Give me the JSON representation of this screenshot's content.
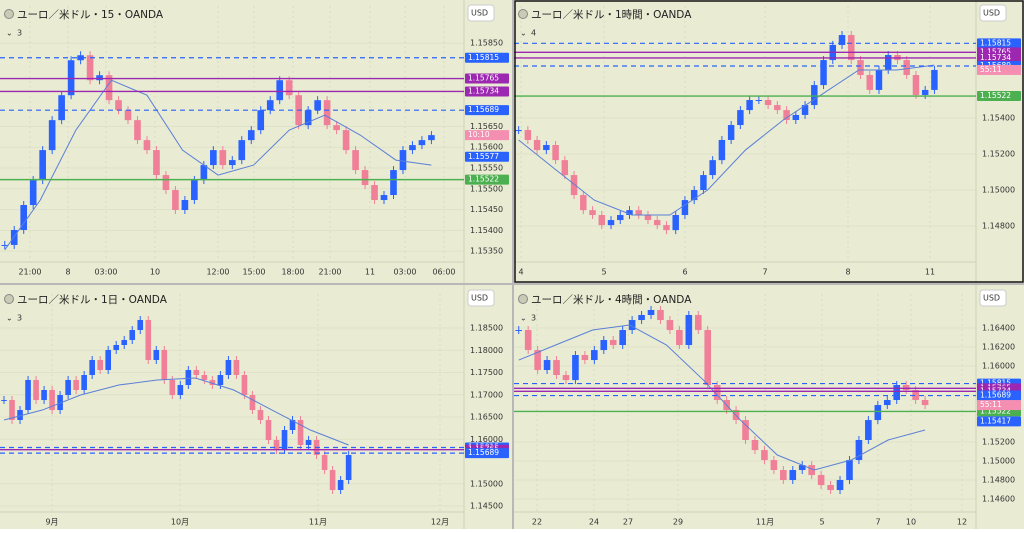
{
  "chart_data": [
    {
      "type": "candlestick",
      "title": "ユーロ／米ドル・15・OANDA",
      "indicator": "3",
      "currency": "USD",
      "ylim": [
        1.15324,
        1.15925
      ],
      "yticks": [
        {
          "value": 1.1535,
          "label": "1.15350"
        },
        {
          "value": 1.154,
          "label": "1.15400"
        },
        {
          "value": 1.1545,
          "label": "1.15450"
        },
        {
          "value": 1.155,
          "label": "1.15500"
        },
        {
          "value": 1.1555,
          "label": "1.15550"
        },
        {
          "value": 1.156,
          "label": "1.15600"
        },
        {
          "value": 1.1565,
          "label": "1.15650"
        },
        {
          "value": 1.1585,
          "label": "1.15850"
        }
      ],
      "xticks": [
        "21:00",
        "8",
        "03:00",
        "10",
        "12:00",
        "15:00",
        "18:00",
        "21:00",
        "11",
        "03:00",
        "06:00"
      ],
      "levels": [
        {
          "value": 1.15815,
          "color": "#2962ff",
          "style": "dashed"
        },
        {
          "value": 1.15765,
          "color": "#9c27b0",
          "style": "solid"
        },
        {
          "value": 1.15734,
          "color": "#9c27b0",
          "style": "solid"
        },
        {
          "value": 1.15689,
          "color": "#2962ff",
          "style": "dashed"
        },
        {
          "value": 1.15577,
          "color": "#2962ff",
          "style": "tag"
        },
        {
          "value": 1.15522,
          "color": "#4caf50",
          "style": "solid"
        }
      ],
      "countdown": "10:10",
      "closes": [
        1.15365,
        1.15401,
        1.15461,
        1.15521,
        1.15593,
        1.15665,
        1.15725,
        1.15809,
        1.15821,
        1.15761,
        1.15773,
        1.15713,
        1.15689,
        1.15665,
        1.15617,
        1.15593,
        1.15533,
        1.15497,
        1.15449,
        1.15473,
        1.15521,
        1.15557,
        1.15593,
        1.15557,
        1.15569,
        1.15617,
        1.15641,
        1.15689,
        1.15713,
        1.15761,
        1.15725,
        1.15653,
        1.15689,
        1.15713,
        1.15653,
        1.15641,
        1.15593,
        1.15545,
        1.15509,
        1.15473,
        1.15485,
        1.15545,
        1.15593,
        1.15605,
        1.15617,
        1.15629
      ],
      "ma": [
        1.15353,
        1.15473,
        1.15641,
        1.15761,
        1.15725,
        1.15593,
        1.15533,
        1.15557,
        1.15641,
        1.15677,
        1.15629,
        1.15569,
        1.15557
      ]
    },
    {
      "type": "candlestick",
      "title": "ユーロ／米ドル・1時間・OANDA",
      "indicator": "4",
      "currency": "USD",
      "ylim": [
        1.146,
        1.15989
      ],
      "yticks": [
        {
          "value": 1.148,
          "label": "1.14800"
        },
        {
          "value": 1.15,
          "label": "1.15000"
        },
        {
          "value": 1.152,
          "label": "1.15200"
        },
        {
          "value": 1.154,
          "label": "1.15400"
        }
      ],
      "xticks": [
        "4",
        "5",
        "6",
        "7",
        "8",
        "11"
      ],
      "levels": [
        {
          "value": 1.15815,
          "color": "#2962ff",
          "style": "dashed"
        },
        {
          "value": 1.15765,
          "color": "#9c27b0",
          "style": "solid"
        },
        {
          "value": 1.15734,
          "color": "#9c27b0",
          "style": "solid"
        },
        {
          "value": 1.15689,
          "color": "#2962ff",
          "style": "dashed"
        },
        {
          "value": 1.15522,
          "color": "#4caf50",
          "style": "solid"
        }
      ],
      "countdown": "55:11",
      "closes": [
        1.15333,
        1.15278,
        1.15222,
        1.1525,
        1.15166,
        1.15083,
        1.14972,
        1.14888,
        1.14861,
        1.14805,
        1.14833,
        1.14861,
        1.14888,
        1.14861,
        1.14833,
        1.14805,
        1.14777,
        1.14861,
        1.14944,
        1.15,
        1.15083,
        1.15166,
        1.15278,
        1.15361,
        1.15444,
        1.155,
        1.155,
        1.15472,
        1.15444,
        1.15389,
        1.15417,
        1.15472,
        1.15583,
        1.15722,
        1.15806,
        1.15861,
        1.15722,
        1.15639,
        1.15556,
        1.15667,
        1.1575,
        1.15722,
        1.15639,
        1.15528,
        1.15556,
        1.15667
      ],
      "ma": [
        1.15278,
        1.1511,
        1.14944,
        1.14861,
        1.14861,
        1.15,
        1.15222,
        1.15389,
        1.15528,
        1.15667,
        1.15667,
        1.15694
      ]
    },
    {
      "type": "candlestick",
      "title": "ユーロ／米ドル・1日・OANDA",
      "indicator": "3",
      "currency": "USD",
      "ylim": [
        1.14366,
        1.19129
      ],
      "yticks": [
        {
          "value": 1.145,
          "label": "1.14500"
        },
        {
          "value": 1.15,
          "label": "1.15000"
        },
        {
          "value": 1.16,
          "label": "1.16000"
        },
        {
          "value": 1.165,
          "label": "1.16500"
        },
        {
          "value": 1.17,
          "label": "1.17000"
        },
        {
          "value": 1.175,
          "label": "1.17500"
        },
        {
          "value": 1.18,
          "label": "1.18000"
        },
        {
          "value": 1.185,
          "label": "1.18500"
        }
      ],
      "xticks": [
        "9月",
        "10月",
        "11月",
        "12月"
      ],
      "levels": [
        {
          "value": 1.15815,
          "color": "#2962ff",
          "style": "dashed"
        },
        {
          "value": 1.15765,
          "color": "#9c27b0",
          "style": "solid"
        },
        {
          "value": 1.15689,
          "color": "#2962ff",
          "style": "dashed"
        }
      ],
      "closes": [
        1.16882,
        1.16433,
        1.16657,
        1.17332,
        1.16882,
        1.17107,
        1.16657,
        1.16994,
        1.17332,
        1.17107,
        1.17444,
        1.17781,
        1.17556,
        1.18006,
        1.18118,
        1.1823,
        1.18455,
        1.1868,
        1.17781,
        1.18006,
        1.17332,
        1.16994,
        1.17219,
        1.17556,
        1.17444,
        1.17332,
        1.17219,
        1.17444,
        1.17781,
        1.17444,
        1.16994,
        1.16657,
        1.16433,
        1.15983,
        1.15759,
        1.16208,
        1.16433,
        1.15871,
        1.15983,
        1.15646,
        1.15309,
        1.1486,
        1.15085,
        1.15646
      ],
      "ma": [
        1.16433,
        1.16657,
        1.16994,
        1.17219,
        1.17332,
        1.17376,
        1.17107,
        1.16657,
        1.16208,
        1.15871
      ]
    },
    {
      "type": "candlestick",
      "title": "ユーロ／米ドル・4時間・OANDA",
      "indicator": "3",
      "currency": "USD",
      "ylim": [
        1.14463,
        1.16695
      ],
      "yticks": [
        {
          "value": 1.146,
          "label": "1.14600"
        },
        {
          "value": 1.148,
          "label": "1.14800"
        },
        {
          "value": 1.15,
          "label": "1.15000"
        },
        {
          "value": 1.152,
          "label": "1.15200"
        },
        {
          "value": 1.16,
          "label": "1.16000"
        },
        {
          "value": 1.162,
          "label": "1.16200"
        },
        {
          "value": 1.164,
          "label": "1.16400"
        }
      ],
      "xticks": [
        "22",
        "24",
        "27",
        "29",
        "11月",
        "5",
        "7",
        "10",
        "12"
      ],
      "levels": [
        {
          "value": 1.15815,
          "color": "#2962ff",
          "style": "dashed"
        },
        {
          "value": 1.15765,
          "color": "#9c27b0",
          "style": "solid"
        },
        {
          "value": 1.15734,
          "color": "#9c27b0",
          "style": "solid"
        },
        {
          "value": 1.15689,
          "color": "#2962ff",
          "style": "dashed"
        },
        {
          "value": 1.15522,
          "color": "#4caf50",
          "style": "solid"
        },
        {
          "value": 1.15417,
          "color": "#2962ff",
          "style": "tag"
        }
      ],
      "countdown": "55:11",
      "closes": [
        1.16379,
        1.16168,
        1.15958,
        1.16063,
        1.15905,
        1.15852,
        1.16116,
        1.16063,
        1.16168,
        1.16274,
        1.16221,
        1.16379,
        1.16484,
        1.16537,
        1.1659,
        1.16484,
        1.16379,
        1.16221,
        1.16537,
        1.16379,
        1.158,
        1.15642,
        1.15537,
        1.15431,
        1.15221,
        1.15115,
        1.1501,
        1.14905,
        1.148,
        1.14905,
        1.14957,
        1.14852,
        1.14747,
        1.14694,
        1.148,
        1.1501,
        1.15221,
        1.15431,
        1.15589,
        1.15642,
        1.158,
        1.15747,
        1.15642,
        1.15589
      ],
      "ma": [
        1.16063,
        1.16221,
        1.16379,
        1.16432,
        1.16221,
        1.15852,
        1.15431,
        1.15063,
        1.14905,
        1.1501,
        1.15221,
        1.15326
      ]
    }
  ]
}
